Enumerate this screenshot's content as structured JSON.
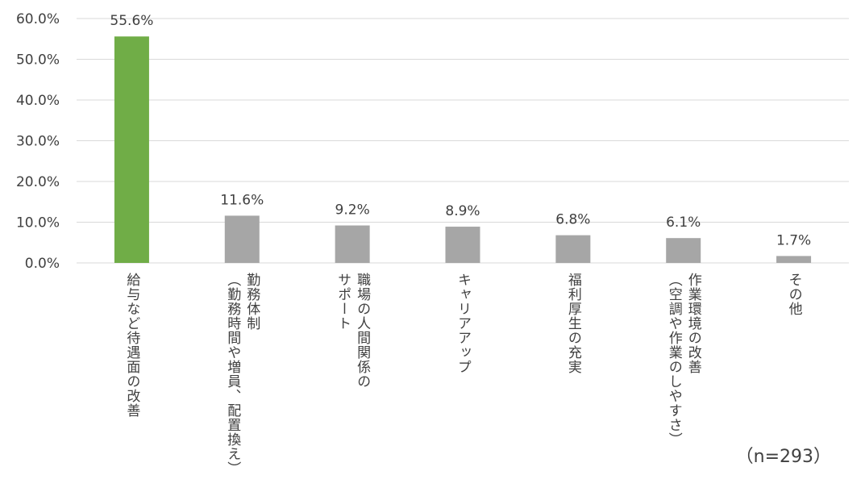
{
  "chart_data": {
    "type": "bar",
    "categories": [
      "給与など待遇面の改善",
      "勤務体制\n（勤務時間や増員、配置換え）",
      "職場の人間関係の\nサポート",
      "キャリアアップ",
      "福利厚生の充実",
      "作業環境の改善\n（空調や作業のしやすさ）",
      "その他"
    ],
    "values": [
      55.6,
      11.6,
      9.2,
      8.9,
      6.8,
      6.1,
      1.7
    ],
    "data_labels": [
      "55.6%",
      "11.6%",
      "9.2%",
      "8.9%",
      "6.8%",
      "6.1%",
      "1.7%"
    ],
    "y_ticks": [
      "0.0%",
      "10.0%",
      "20.0%",
      "30.0%",
      "40.0%",
      "50.0%",
      "60.0%"
    ],
    "ylim": [
      0,
      60
    ],
    "grid": true,
    "highlight_index": 0,
    "colors": {
      "highlight": "#70ad47",
      "bar": "#a6a6a6",
      "grid": "#d9d9d9"
    },
    "note": "（n=293）"
  }
}
